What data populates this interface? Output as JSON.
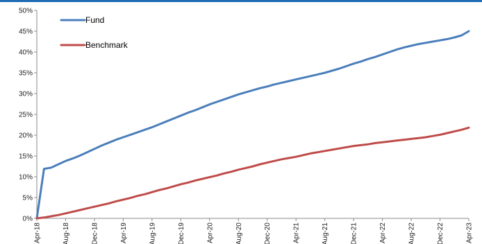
{
  "colors": {
    "top_rule": "#1f6bb4",
    "fund": "#4a7ebb",
    "benchmark": "#be4b48",
    "axis": "#888888"
  },
  "chart_data": {
    "type": "line",
    "title": "",
    "xlabel": "",
    "ylabel": "",
    "ylim": [
      0,
      0.5
    ],
    "y_ticks": [
      0,
      0.05,
      0.1,
      0.15,
      0.2,
      0.25,
      0.3,
      0.35,
      0.4,
      0.45,
      0.5
    ],
    "y_tick_labels": [
      "0%",
      "5%",
      "10%",
      "15%",
      "20%",
      "25%",
      "30%",
      "35%",
      "40%",
      "45%",
      "50%"
    ],
    "x_tick_labels": [
      "Apr-18",
      "Aug-18",
      "Dec-18",
      "Apr-19",
      "Aug-19",
      "Dec-19",
      "Apr-20",
      "Aug-20",
      "Dec-20",
      "Apr-21",
      "Aug-21",
      "Dec-21",
      "Apr-22",
      "Aug-22",
      "Dec-22",
      "Apr-23"
    ],
    "x": [
      "Apr-18",
      "May-18",
      "Jun-18",
      "Jul-18",
      "Aug-18",
      "Sep-18",
      "Oct-18",
      "Nov-18",
      "Dec-18",
      "Jan-19",
      "Feb-19",
      "Mar-19",
      "Apr-19",
      "May-19",
      "Jun-19",
      "Jul-19",
      "Aug-19",
      "Sep-19",
      "Oct-19",
      "Nov-19",
      "Dec-19",
      "Jan-20",
      "Feb-20",
      "Mar-20",
      "Apr-20",
      "May-20",
      "Jun-20",
      "Jul-20",
      "Aug-20",
      "Sep-20",
      "Oct-20",
      "Nov-20",
      "Dec-20",
      "Jan-21",
      "Feb-21",
      "Mar-21",
      "Apr-21",
      "May-21",
      "Jun-21",
      "Jul-21",
      "Aug-21",
      "Sep-21",
      "Oct-21",
      "Nov-21",
      "Dec-21",
      "Jan-22",
      "Feb-22",
      "Mar-22",
      "Apr-22",
      "May-22",
      "Jun-22",
      "Jul-22",
      "Aug-22",
      "Sep-22",
      "Oct-22",
      "Nov-22",
      "Dec-22",
      "Jan-23",
      "Feb-23",
      "Mar-23",
      "Apr-23"
    ],
    "legend_position": "top-left",
    "grid": false,
    "series": [
      {
        "name": "Fund",
        "color": "#4a7ebb",
        "values": [
          0.0,
          0.119,
          0.122,
          0.13,
          0.138,
          0.144,
          0.151,
          0.159,
          0.167,
          0.175,
          0.182,
          0.189,
          0.195,
          0.201,
          0.207,
          0.213,
          0.219,
          0.226,
          0.233,
          0.24,
          0.247,
          0.254,
          0.26,
          0.267,
          0.274,
          0.28,
          0.286,
          0.292,
          0.298,
          0.303,
          0.308,
          0.313,
          0.317,
          0.322,
          0.326,
          0.33,
          0.334,
          0.338,
          0.342,
          0.346,
          0.35,
          0.355,
          0.36,
          0.366,
          0.372,
          0.377,
          0.383,
          0.388,
          0.394,
          0.4,
          0.406,
          0.411,
          0.415,
          0.419,
          0.422,
          0.425,
          0.428,
          0.431,
          0.435,
          0.44,
          0.45
        ]
      },
      {
        "name": "Benchmark",
        "color": "#be4b48",
        "values": [
          0.0,
          0.002,
          0.005,
          0.008,
          0.012,
          0.016,
          0.02,
          0.024,
          0.028,
          0.032,
          0.036,
          0.041,
          0.045,
          0.049,
          0.054,
          0.058,
          0.063,
          0.068,
          0.072,
          0.077,
          0.082,
          0.086,
          0.091,
          0.095,
          0.099,
          0.103,
          0.108,
          0.112,
          0.117,
          0.121,
          0.125,
          0.13,
          0.134,
          0.138,
          0.142,
          0.145,
          0.148,
          0.152,
          0.156,
          0.159,
          0.162,
          0.165,
          0.168,
          0.171,
          0.174,
          0.176,
          0.178,
          0.181,
          0.183,
          0.185,
          0.187,
          0.189,
          0.191,
          0.193,
          0.195,
          0.198,
          0.201,
          0.205,
          0.209,
          0.213,
          0.218
        ]
      }
    ]
  }
}
